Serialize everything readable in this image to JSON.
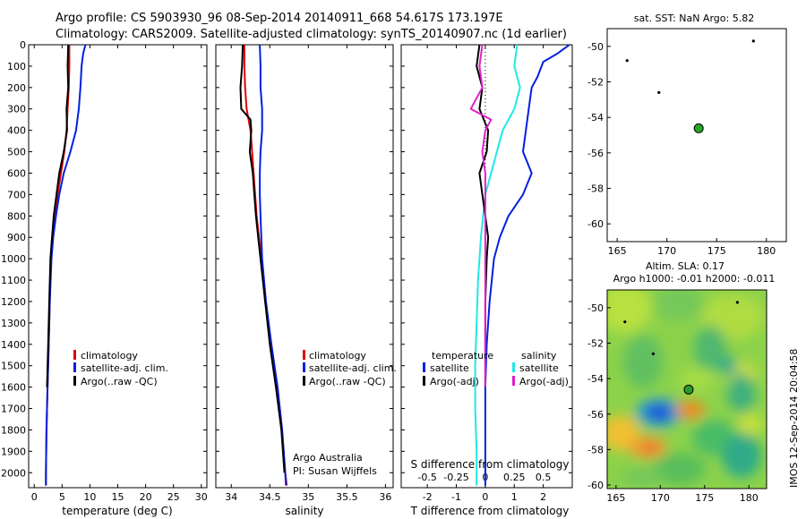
{
  "title": {
    "line1": "Argo profile: CS 5903930_96 08-Sep-2014 20140911_668 54.617S 173.197E",
    "line2": "Climatology: CARS2009. Satellite-adjusted climatology: synTS_20140907.nc (1d earlier)"
  },
  "colors": {
    "climatology": "#e00000",
    "satellite": "#0020e0",
    "argo": "#000000",
    "sat_salinity": "#20e8e8",
    "argo_salinity": "#e020c8",
    "float": "#22aa22"
  },
  "depth_ticks": [
    "0",
    "100",
    "200",
    "300",
    "400",
    "500",
    "600",
    "700",
    "800",
    "900",
    "1000",
    "1100",
    "1200",
    "1300",
    "1400",
    "1500",
    "1600",
    "1700",
    "1800",
    "1900",
    "2000"
  ],
  "legend": {
    "climatology": "climatology",
    "satellite": "satellite-adj. clim.",
    "argo": "Argo(..raw -QC)",
    "temperature": "temperature",
    "salinity": "salinity",
    "sat": "satellite",
    "argo_adj": "Argo(-adj)"
  },
  "credits": {
    "line1": "Argo Australia",
    "line2": "PI: Susan Wijffels"
  },
  "map_top_title": "sat. SST: NaN Argo: 5.82",
  "map_bot_title1": "Altim. SLA: 0.17",
  "map_bot_title2": "Argo h1000: -0.01 h2000: -0.011",
  "side_text": "IMOS 12-Sep-2014 20:04:58",
  "chart_data": [
    {
      "type": "line",
      "xlabel": "temperature (deg C)",
      "ylabel": "",
      "xlim": [
        -1,
        31
      ],
      "ylim": [
        2070,
        0
      ],
      "xticks": [
        0,
        5,
        10,
        15,
        20,
        25,
        30
      ],
      "series": [
        {
          "name": "climatology",
          "color": "#e00000",
          "points": [
            [
              6.3,
              0
            ],
            [
              6.3,
              100
            ],
            [
              6.2,
              200
            ],
            [
              6.0,
              300
            ],
            [
              5.8,
              400
            ],
            [
              5.4,
              500
            ],
            [
              4.8,
              600
            ],
            [
              4.2,
              700
            ],
            [
              3.7,
              800
            ],
            [
              3.3,
              900
            ],
            [
              3.0,
              1000
            ],
            [
              2.8,
              1200
            ],
            [
              2.6,
              1400
            ],
            [
              2.4,
              1600
            ],
            [
              2.2,
              1800
            ],
            [
              2.1,
              2000
            ],
            [
              2.1,
              2060
            ]
          ]
        },
        {
          "name": "satellite-adj. clim.",
          "color": "#0020e0",
          "points": [
            [
              9.2,
              0
            ],
            [
              8.8,
              40
            ],
            [
              8.5,
              100
            ],
            [
              8.3,
              200
            ],
            [
              8.0,
              300
            ],
            [
              7.5,
              400
            ],
            [
              6.5,
              500
            ],
            [
              5.3,
              600
            ],
            [
              4.5,
              700
            ],
            [
              3.9,
              800
            ],
            [
              3.4,
              900
            ],
            [
              3.1,
              1000
            ],
            [
              2.8,
              1200
            ],
            [
              2.6,
              1400
            ],
            [
              2.4,
              1600
            ],
            [
              2.2,
              1800
            ],
            [
              2.1,
              2000
            ],
            [
              2.1,
              2060
            ]
          ]
        },
        {
          "name": "Argo(..raw -QC)",
          "color": "#000000",
          "points": [
            [
              6.1,
              0
            ],
            [
              6.0,
              100
            ],
            [
              6.1,
              200
            ],
            [
              5.8,
              300
            ],
            [
              5.9,
              400
            ],
            [
              5.3,
              500
            ],
            [
              4.5,
              600
            ],
            [
              4.0,
              700
            ],
            [
              3.5,
              800
            ],
            [
              3.2,
              900
            ],
            [
              2.9,
              1000
            ],
            [
              2.7,
              1200
            ],
            [
              2.5,
              1400
            ],
            [
              2.3,
              1600
            ]
          ]
        }
      ],
      "legend": [
        "climatology",
        "satellite-adj. clim.",
        "Argo(..raw -QC)"
      ]
    },
    {
      "type": "line",
      "xlabel": "salinity",
      "ylabel": "",
      "xlim": [
        33.8,
        36.1
      ],
      "ylim": [
        2070,
        0
      ],
      "xticks": [
        34,
        34.5,
        35,
        35.5,
        36
      ],
      "series": [
        {
          "name": "climatology",
          "color": "#e00000",
          "points": [
            [
              34.17,
              0
            ],
            [
              34.17,
              100
            ],
            [
              34.18,
              200
            ],
            [
              34.2,
              300
            ],
            [
              34.25,
              400
            ],
            [
              34.27,
              500
            ],
            [
              34.29,
              600
            ],
            [
              34.31,
              700
            ],
            [
              34.33,
              800
            ],
            [
              34.36,
              900
            ],
            [
              34.39,
              1000
            ],
            [
              34.44,
              1200
            ],
            [
              34.52,
              1400
            ],
            [
              34.6,
              1600
            ],
            [
              34.66,
              1800
            ],
            [
              34.7,
              2000
            ],
            [
              34.72,
              2060
            ]
          ]
        },
        {
          "name": "satellite-adj. clim.",
          "color": "#0020e0",
          "points": [
            [
              34.37,
              0
            ],
            [
              34.38,
              100
            ],
            [
              34.38,
              200
            ],
            [
              34.4,
              300
            ],
            [
              34.4,
              400
            ],
            [
              34.38,
              500
            ],
            [
              34.37,
              600
            ],
            [
              34.37,
              700
            ],
            [
              34.38,
              800
            ],
            [
              34.39,
              900
            ],
            [
              34.4,
              1000
            ],
            [
              34.45,
              1200
            ],
            [
              34.52,
              1400
            ],
            [
              34.6,
              1600
            ],
            [
              34.66,
              1800
            ],
            [
              34.7,
              2000
            ],
            [
              34.71,
              2060
            ]
          ]
        },
        {
          "name": "Argo(..raw -QC)",
          "color": "#000000",
          "points": [
            [
              34.15,
              0
            ],
            [
              34.14,
              100
            ],
            [
              34.12,
              200
            ],
            [
              34.13,
              300
            ],
            [
              34.25,
              350
            ],
            [
              34.26,
              400
            ],
            [
              34.24,
              500
            ],
            [
              34.28,
              600
            ],
            [
              34.3,
              700
            ],
            [
              34.32,
              800
            ],
            [
              34.35,
              900
            ],
            [
              34.38,
              1000
            ],
            [
              34.44,
              1200
            ],
            [
              34.5,
              1400
            ],
            [
              34.58,
              1600
            ],
            [
              34.65,
              1800
            ],
            [
              34.69,
              2000
            ]
          ]
        }
      ],
      "legend": [
        "climatology",
        "satellite-adj. clim.",
        "Argo(..raw -QC)"
      ]
    },
    {
      "type": "line",
      "xlabel": "T difference from climatology",
      "ylabel": "",
      "xlim": [
        -2.9,
        3.0
      ],
      "ylim": [
        2070,
        0
      ],
      "xticks": [
        -2,
        -1,
        0,
        1,
        2
      ],
      "secondary_xlabel": "S difference from climatology",
      "secondary_xticks": [
        "-0.5",
        "-0.25",
        "0",
        "0.25",
        "0.5"
      ],
      "series": [
        {
          "name": "temperature satellite",
          "color": "#0020e0",
          "points": [
            [
              2.9,
              0
            ],
            [
              2.5,
              40
            ],
            [
              2.0,
              80
            ],
            [
              1.8,
              150
            ],
            [
              1.6,
              200
            ],
            [
              1.5,
              300
            ],
            [
              1.4,
              400
            ],
            [
              1.3,
              500
            ],
            [
              1.6,
              600
            ],
            [
              1.3,
              700
            ],
            [
              0.8,
              800
            ],
            [
              0.5,
              900
            ],
            [
              0.3,
              1000
            ],
            [
              0.15,
              1200
            ],
            [
              0.05,
              1400
            ],
            [
              0.0,
              1600
            ],
            [
              0.0,
              2060
            ]
          ]
        },
        {
          "name": "salinity satellite",
          "color": "#20e8e8",
          "points": [
            [
              1.1,
              0
            ],
            [
              1.0,
              100
            ],
            [
              1.2,
              200
            ],
            [
              1.0,
              300
            ],
            [
              0.6,
              400
            ],
            [
              0.4,
              500
            ],
            [
              0.2,
              600
            ],
            [
              0.0,
              700
            ],
            [
              -0.15,
              900
            ],
            [
              -0.25,
              1100
            ],
            [
              -0.3,
              1300
            ],
            [
              -0.35,
              1500
            ],
            [
              -0.35,
              1700
            ],
            [
              -0.3,
              1900
            ],
            [
              -0.3,
              2060
            ]
          ]
        },
        {
          "name": "temperature Argo(-adj)",
          "color": "#000000",
          "points": [
            [
              -0.2,
              0
            ],
            [
              -0.3,
              100
            ],
            [
              -0.1,
              200
            ],
            [
              -0.2,
              300
            ],
            [
              0.1,
              400
            ],
            [
              0.05,
              500
            ],
            [
              -0.2,
              600
            ],
            [
              -0.1,
              700
            ],
            [
              0.0,
              800
            ],
            [
              0.1,
              900
            ],
            [
              0.05,
              1000
            ],
            [
              0.0,
              1200
            ],
            [
              0.0,
              1600
            ]
          ]
        },
        {
          "name": "salinity Argo(-adj)",
          "color": "#e020c8",
          "points": [
            [
              -0.1,
              0
            ],
            [
              -0.2,
              100
            ],
            [
              -0.1,
              200
            ],
            [
              -0.5,
              300
            ],
            [
              0.2,
              350
            ],
            [
              0.0,
              400
            ],
            [
              -0.1,
              500
            ],
            [
              0.0,
              600
            ],
            [
              0.0,
              800
            ],
            [
              0.0,
              1000
            ],
            [
              0.0,
              1200
            ],
            [
              0.0,
              1600
            ]
          ]
        }
      ],
      "legend": [
        "temperature satellite",
        "temperature Argo(-adj)",
        "salinity satellite",
        "salinity Argo(-adj)"
      ]
    },
    {
      "type": "scatter",
      "title": "sat. SST: NaN Argo: 5.82",
      "xlim": [
        164,
        182
      ],
      "ylim": [
        -61,
        -49
      ],
      "xticks": [
        165,
        170,
        175,
        180
      ],
      "yticks": [
        -50,
        -52,
        -54,
        -56,
        -58,
        -60
      ],
      "points": [
        [
          166,
          -50.8
        ],
        [
          169.2,
          -52.6
        ],
        [
          178.7,
          -49.7
        ]
      ],
      "float_position": [
        173.197,
        -54.617
      ]
    },
    {
      "type": "heatmap",
      "title": "Altim. SLA: 0.17",
      "xlim": [
        164,
        182
      ],
      "ylim": [
        -60.2,
        -49
      ],
      "xticks": [
        165,
        170,
        175,
        180
      ],
      "yticks": [
        -50,
        -52,
        -54,
        -56,
        -58,
        -60
      ],
      "points": [
        [
          166,
          -50.8
        ],
        [
          169.2,
          -52.6
        ],
        [
          178.7,
          -49.7
        ]
      ],
      "float_position": [
        173.197,
        -54.617
      ]
    }
  ]
}
